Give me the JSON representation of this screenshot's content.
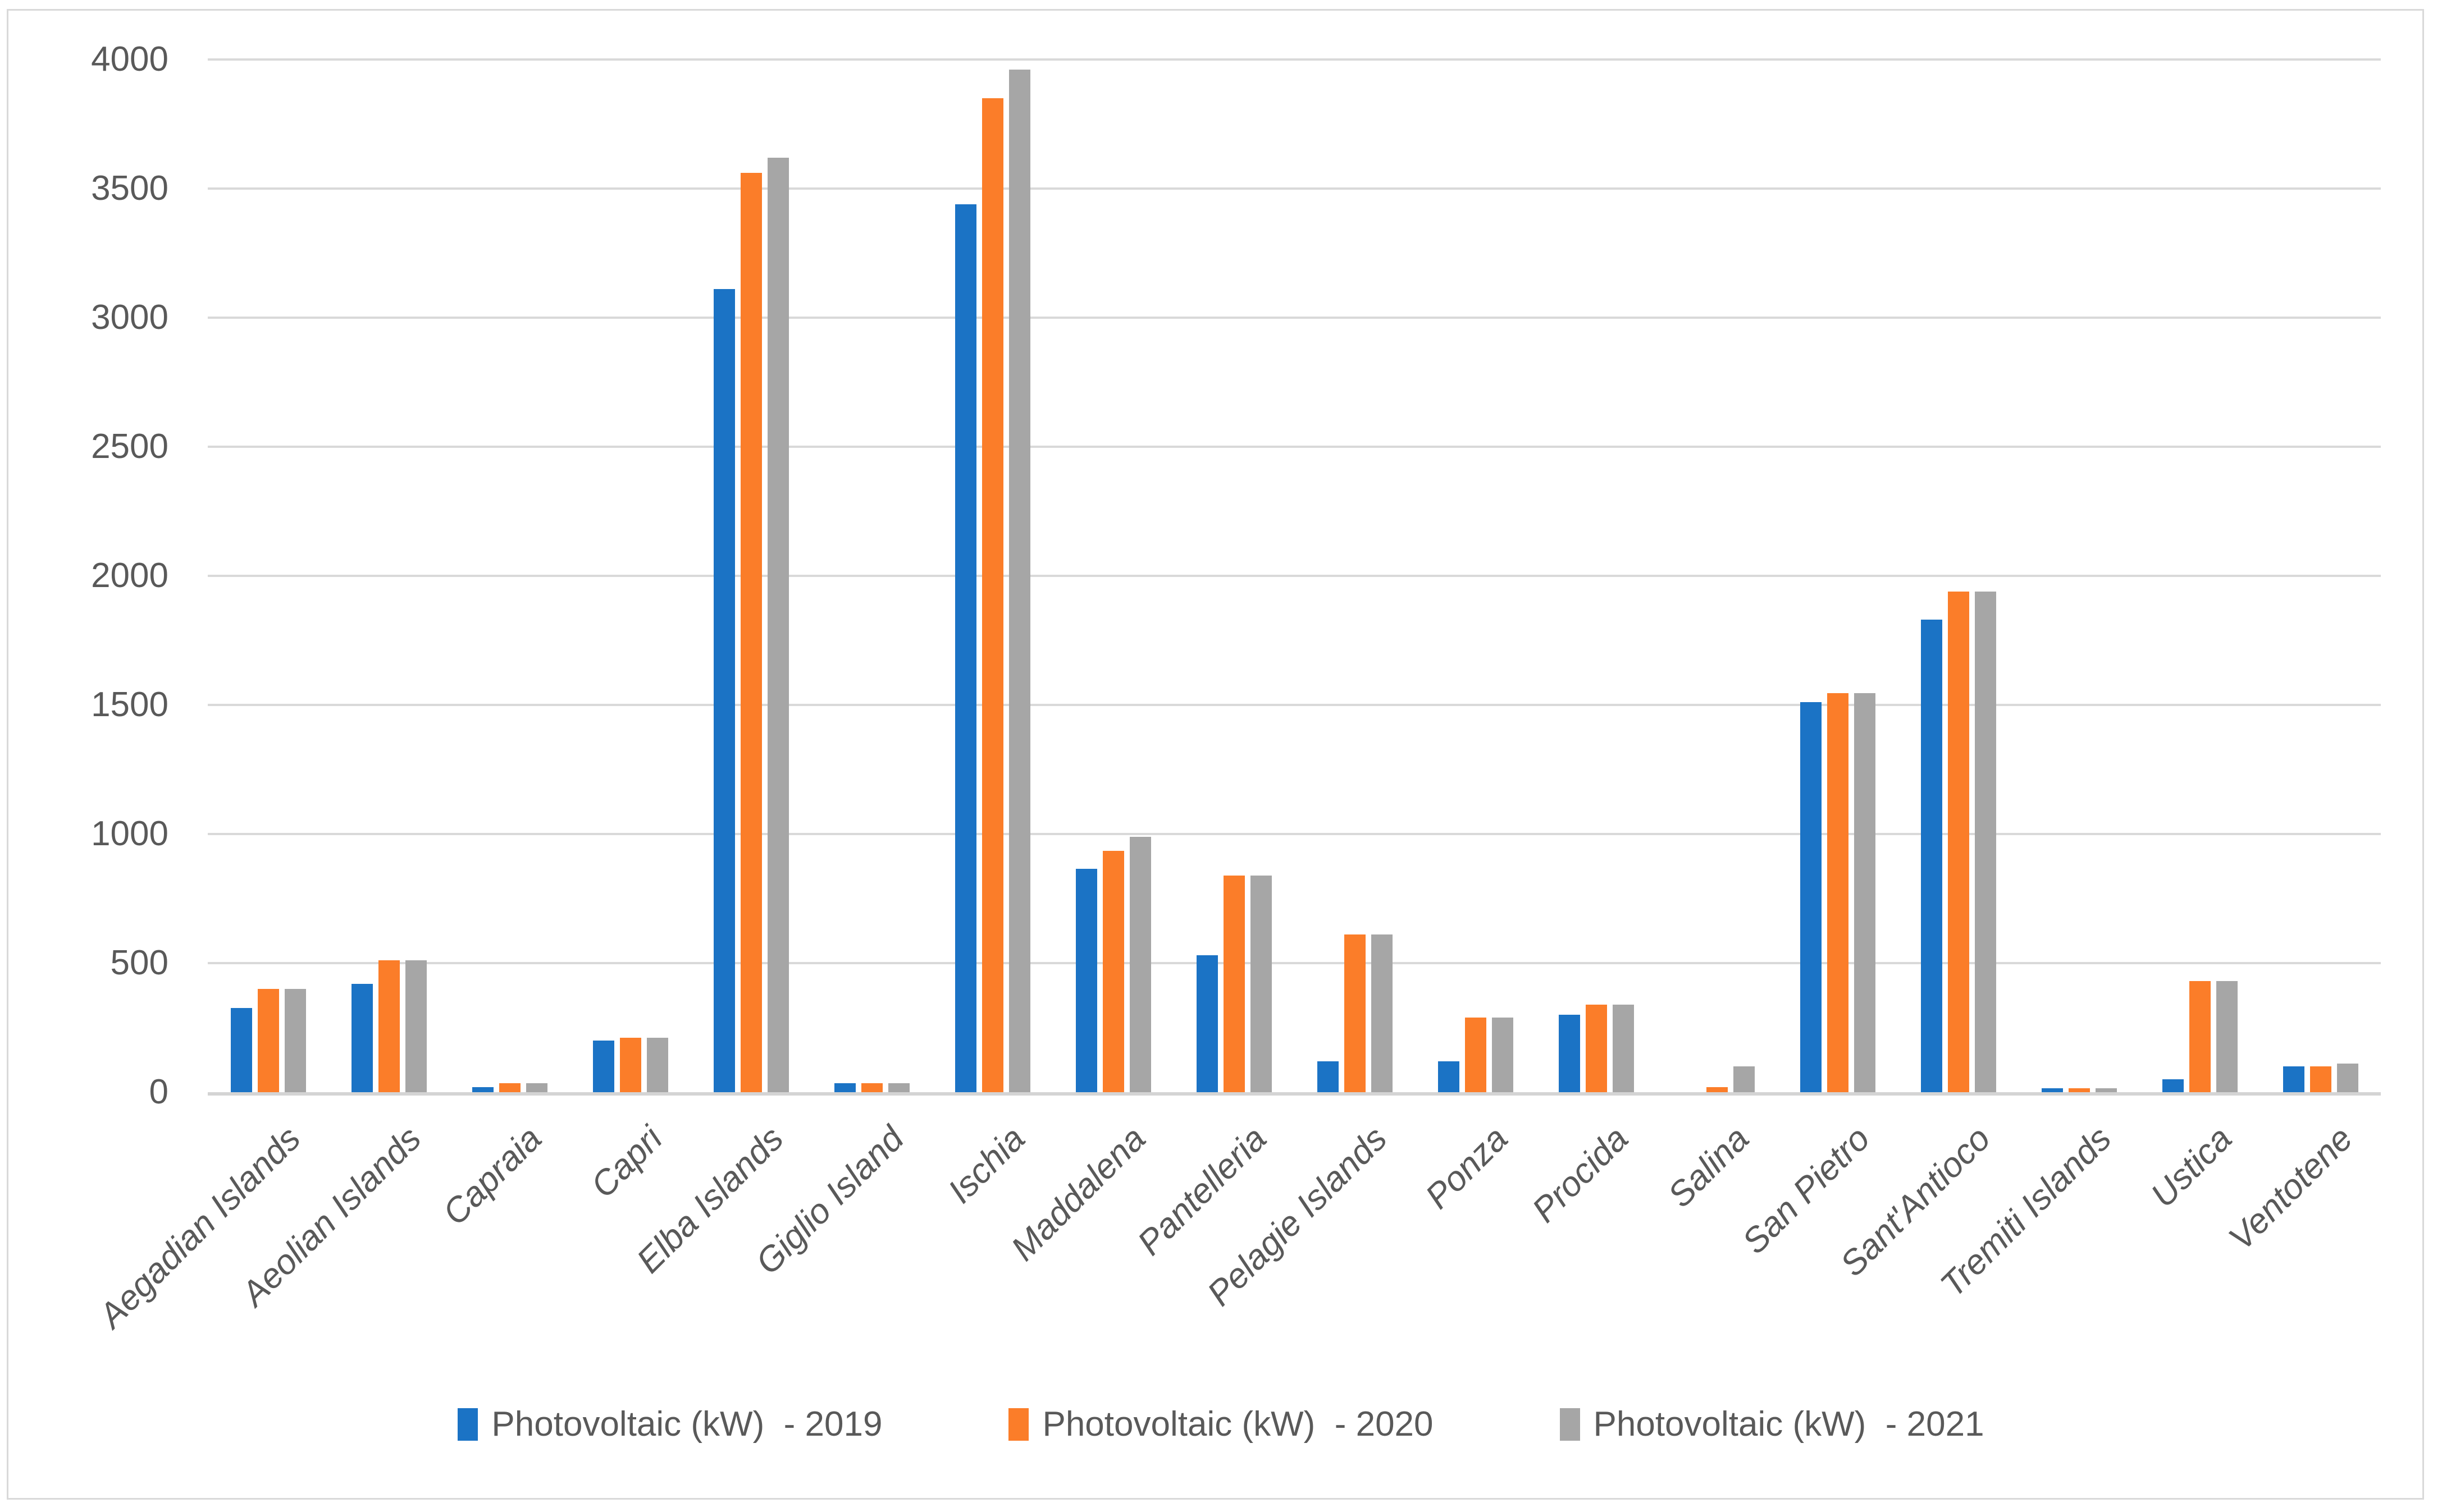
{
  "figure": {
    "background_color": "#ffffff",
    "frame_border_color": "#d9d9d9"
  },
  "chart_data": {
    "type": "bar",
    "title": "",
    "xlabel": "",
    "ylabel": "",
    "categories": [
      "Aegadian Islands",
      "Aeolian Islands",
      "Capraia",
      "Capri",
      "Elba Islands",
      "Giglio Island",
      "Ischia",
      "Maddalena",
      "Pantelleria",
      "Pelagie Islands",
      "Ponza",
      "Procida",
      "Salina",
      "San Pietro",
      "Sant'Antioco",
      "Tremiti Islands",
      "Ustica",
      "Ventotene"
    ],
    "series": [
      {
        "name": "Photovoltaic (kW)  - 2019",
        "color": "#1b73c5",
        "values": [
          325,
          420,
          20,
          200,
          3110,
          35,
          3440,
          865,
          530,
          120,
          120,
          300,
          0,
          1510,
          1830,
          15,
          50,
          100
        ]
      },
      {
        "name": "Photovoltaic (kW)  - 2020",
        "color": "#fb7d29",
        "values": [
          400,
          510,
          35,
          210,
          3560,
          35,
          3850,
          935,
          840,
          610,
          290,
          340,
          20,
          1545,
          1940,
          15,
          430,
          100
        ]
      },
      {
        "name": "Photovoltaic (kW)  - 2021",
        "color": "#a6a6a6",
        "values": [
          400,
          510,
          35,
          210,
          3620,
          35,
          3960,
          990,
          840,
          610,
          290,
          340,
          100,
          1545,
          1940,
          15,
          430,
          110
        ]
      }
    ],
    "ylim": [
      0,
      4000
    ],
    "ytick_step": 500,
    "yticks": [
      0,
      500,
      1000,
      1500,
      2000,
      2500,
      3000,
      3500,
      4000
    ],
    "grid": "horizontal",
    "gridline_color": "#d9d9d9",
    "axis_line_color": "#d4d4d4",
    "axis_text_color": "#595959",
    "xlabel_rotation_deg": -45,
    "xlabel_style": "italic",
    "legend_position": "bottom"
  }
}
